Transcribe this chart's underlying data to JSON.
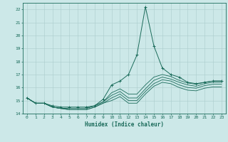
{
  "title": "",
  "xlabel": "Humidex (Indice chaleur)",
  "ylabel": "",
  "xlim": [
    -0.5,
    23.5
  ],
  "ylim": [
    14,
    22.5
  ],
  "yticks": [
    14,
    15,
    16,
    17,
    18,
    19,
    20,
    21,
    22
  ],
  "xticks": [
    0,
    1,
    2,
    3,
    4,
    5,
    6,
    7,
    8,
    9,
    10,
    11,
    12,
    13,
    14,
    15,
    16,
    17,
    18,
    19,
    20,
    21,
    22,
    23
  ],
  "background_color": "#cce8e8",
  "grid_color": "#aacccc",
  "line_color": "#1a6b5a",
  "lines": [
    [
      15.2,
      14.8,
      14.8,
      14.6,
      14.5,
      14.5,
      14.5,
      14.5,
      14.6,
      15.1,
      16.2,
      16.5,
      17.0,
      18.5,
      22.2,
      19.2,
      17.5,
      17.0,
      16.8,
      16.4,
      16.3,
      16.4,
      16.5,
      16.5
    ],
    [
      15.2,
      14.8,
      14.8,
      14.5,
      14.4,
      14.4,
      14.4,
      14.4,
      14.6,
      14.9,
      15.6,
      15.9,
      15.5,
      15.5,
      16.2,
      16.8,
      17.0,
      16.85,
      16.55,
      16.35,
      16.25,
      16.4,
      16.5,
      16.5
    ],
    [
      15.2,
      14.8,
      14.8,
      14.5,
      14.4,
      14.4,
      14.4,
      14.4,
      14.6,
      14.9,
      15.4,
      15.7,
      15.2,
      15.2,
      15.9,
      16.55,
      16.8,
      16.65,
      16.4,
      16.2,
      16.1,
      16.3,
      16.4,
      16.4
    ],
    [
      15.2,
      14.8,
      14.8,
      14.5,
      14.4,
      14.3,
      14.3,
      14.3,
      14.5,
      14.8,
      15.2,
      15.5,
      15.0,
      15.0,
      15.7,
      16.3,
      16.6,
      16.5,
      16.2,
      16.0,
      15.95,
      16.15,
      16.25,
      16.25
    ],
    [
      15.2,
      14.8,
      14.8,
      14.5,
      14.4,
      14.3,
      14.3,
      14.3,
      14.5,
      14.8,
      15.0,
      15.3,
      14.8,
      14.8,
      15.5,
      16.1,
      16.4,
      16.3,
      16.0,
      15.8,
      15.75,
      15.95,
      16.05,
      16.05
    ]
  ]
}
